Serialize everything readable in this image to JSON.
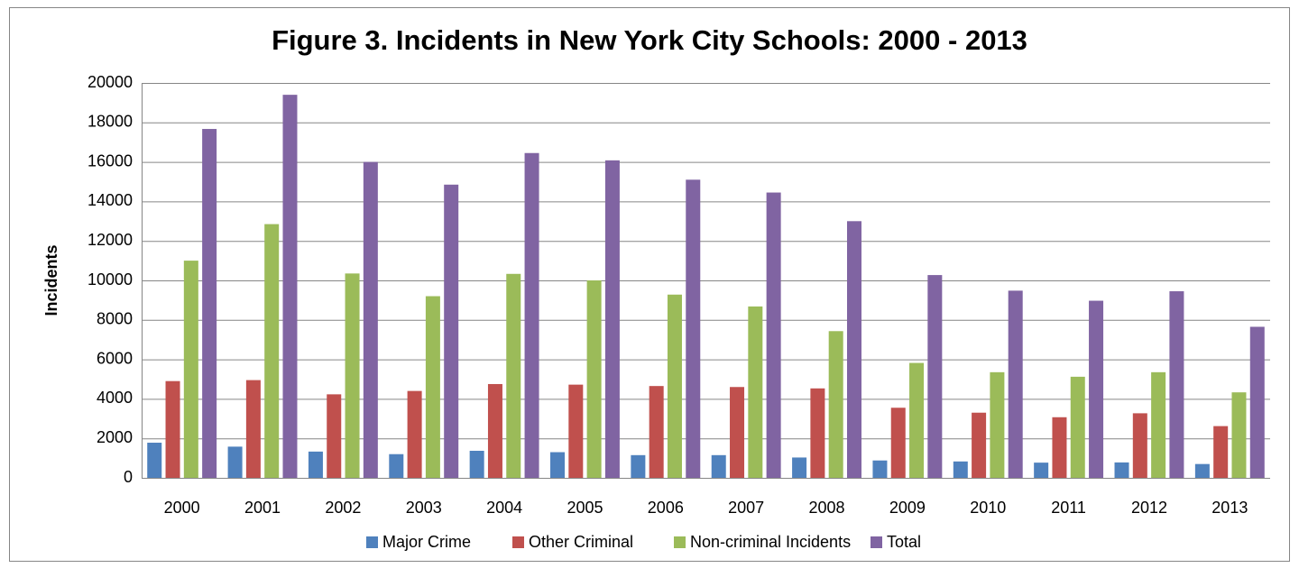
{
  "chart_data": {
    "type": "bar",
    "title": "Figure 3. Incidents in New York City Schools: 2000 - 2013",
    "y_label": "Incidents",
    "categories": [
      "2000",
      "2001",
      "2002",
      "2003",
      "2004",
      "2005",
      "2006",
      "2007",
      "2008",
      "2009",
      "2010",
      "2011",
      "2012",
      "2013"
    ],
    "series": [
      {
        "name": "Major Crime",
        "color": "#4f81bd",
        "values": [
          1780,
          1580,
          1330,
          1200,
          1370,
          1300,
          1150,
          1150,
          1030,
          880,
          830,
          770,
          780,
          700
        ]
      },
      {
        "name": "Other Criminal",
        "color": "#c0504d",
        "values": [
          4900,
          4950,
          4230,
          4400,
          4750,
          4720,
          4650,
          4600,
          4530,
          3550,
          3300,
          3070,
          3270,
          2620
        ]
      },
      {
        "name": "Non-criminal Incidents",
        "color": "#9bbb59",
        "values": [
          11000,
          12850,
          10350,
          9200,
          10330,
          10000,
          9280,
          8680,
          7430,
          5820,
          5350,
          5120,
          5350,
          4330
        ]
      },
      {
        "name": "Total",
        "color": "#8064a2",
        "values": [
          17670,
          19400,
          16000,
          14850,
          16450,
          16080,
          15100,
          14450,
          13000,
          10270,
          9480,
          8970,
          9450,
          7650
        ]
      }
    ],
    "ylim": [
      0,
      20000
    ],
    "yticks": [
      0,
      2000,
      4000,
      6000,
      8000,
      10000,
      12000,
      14000,
      16000,
      18000,
      20000
    ],
    "grid": true,
    "legend": "bottom"
  }
}
